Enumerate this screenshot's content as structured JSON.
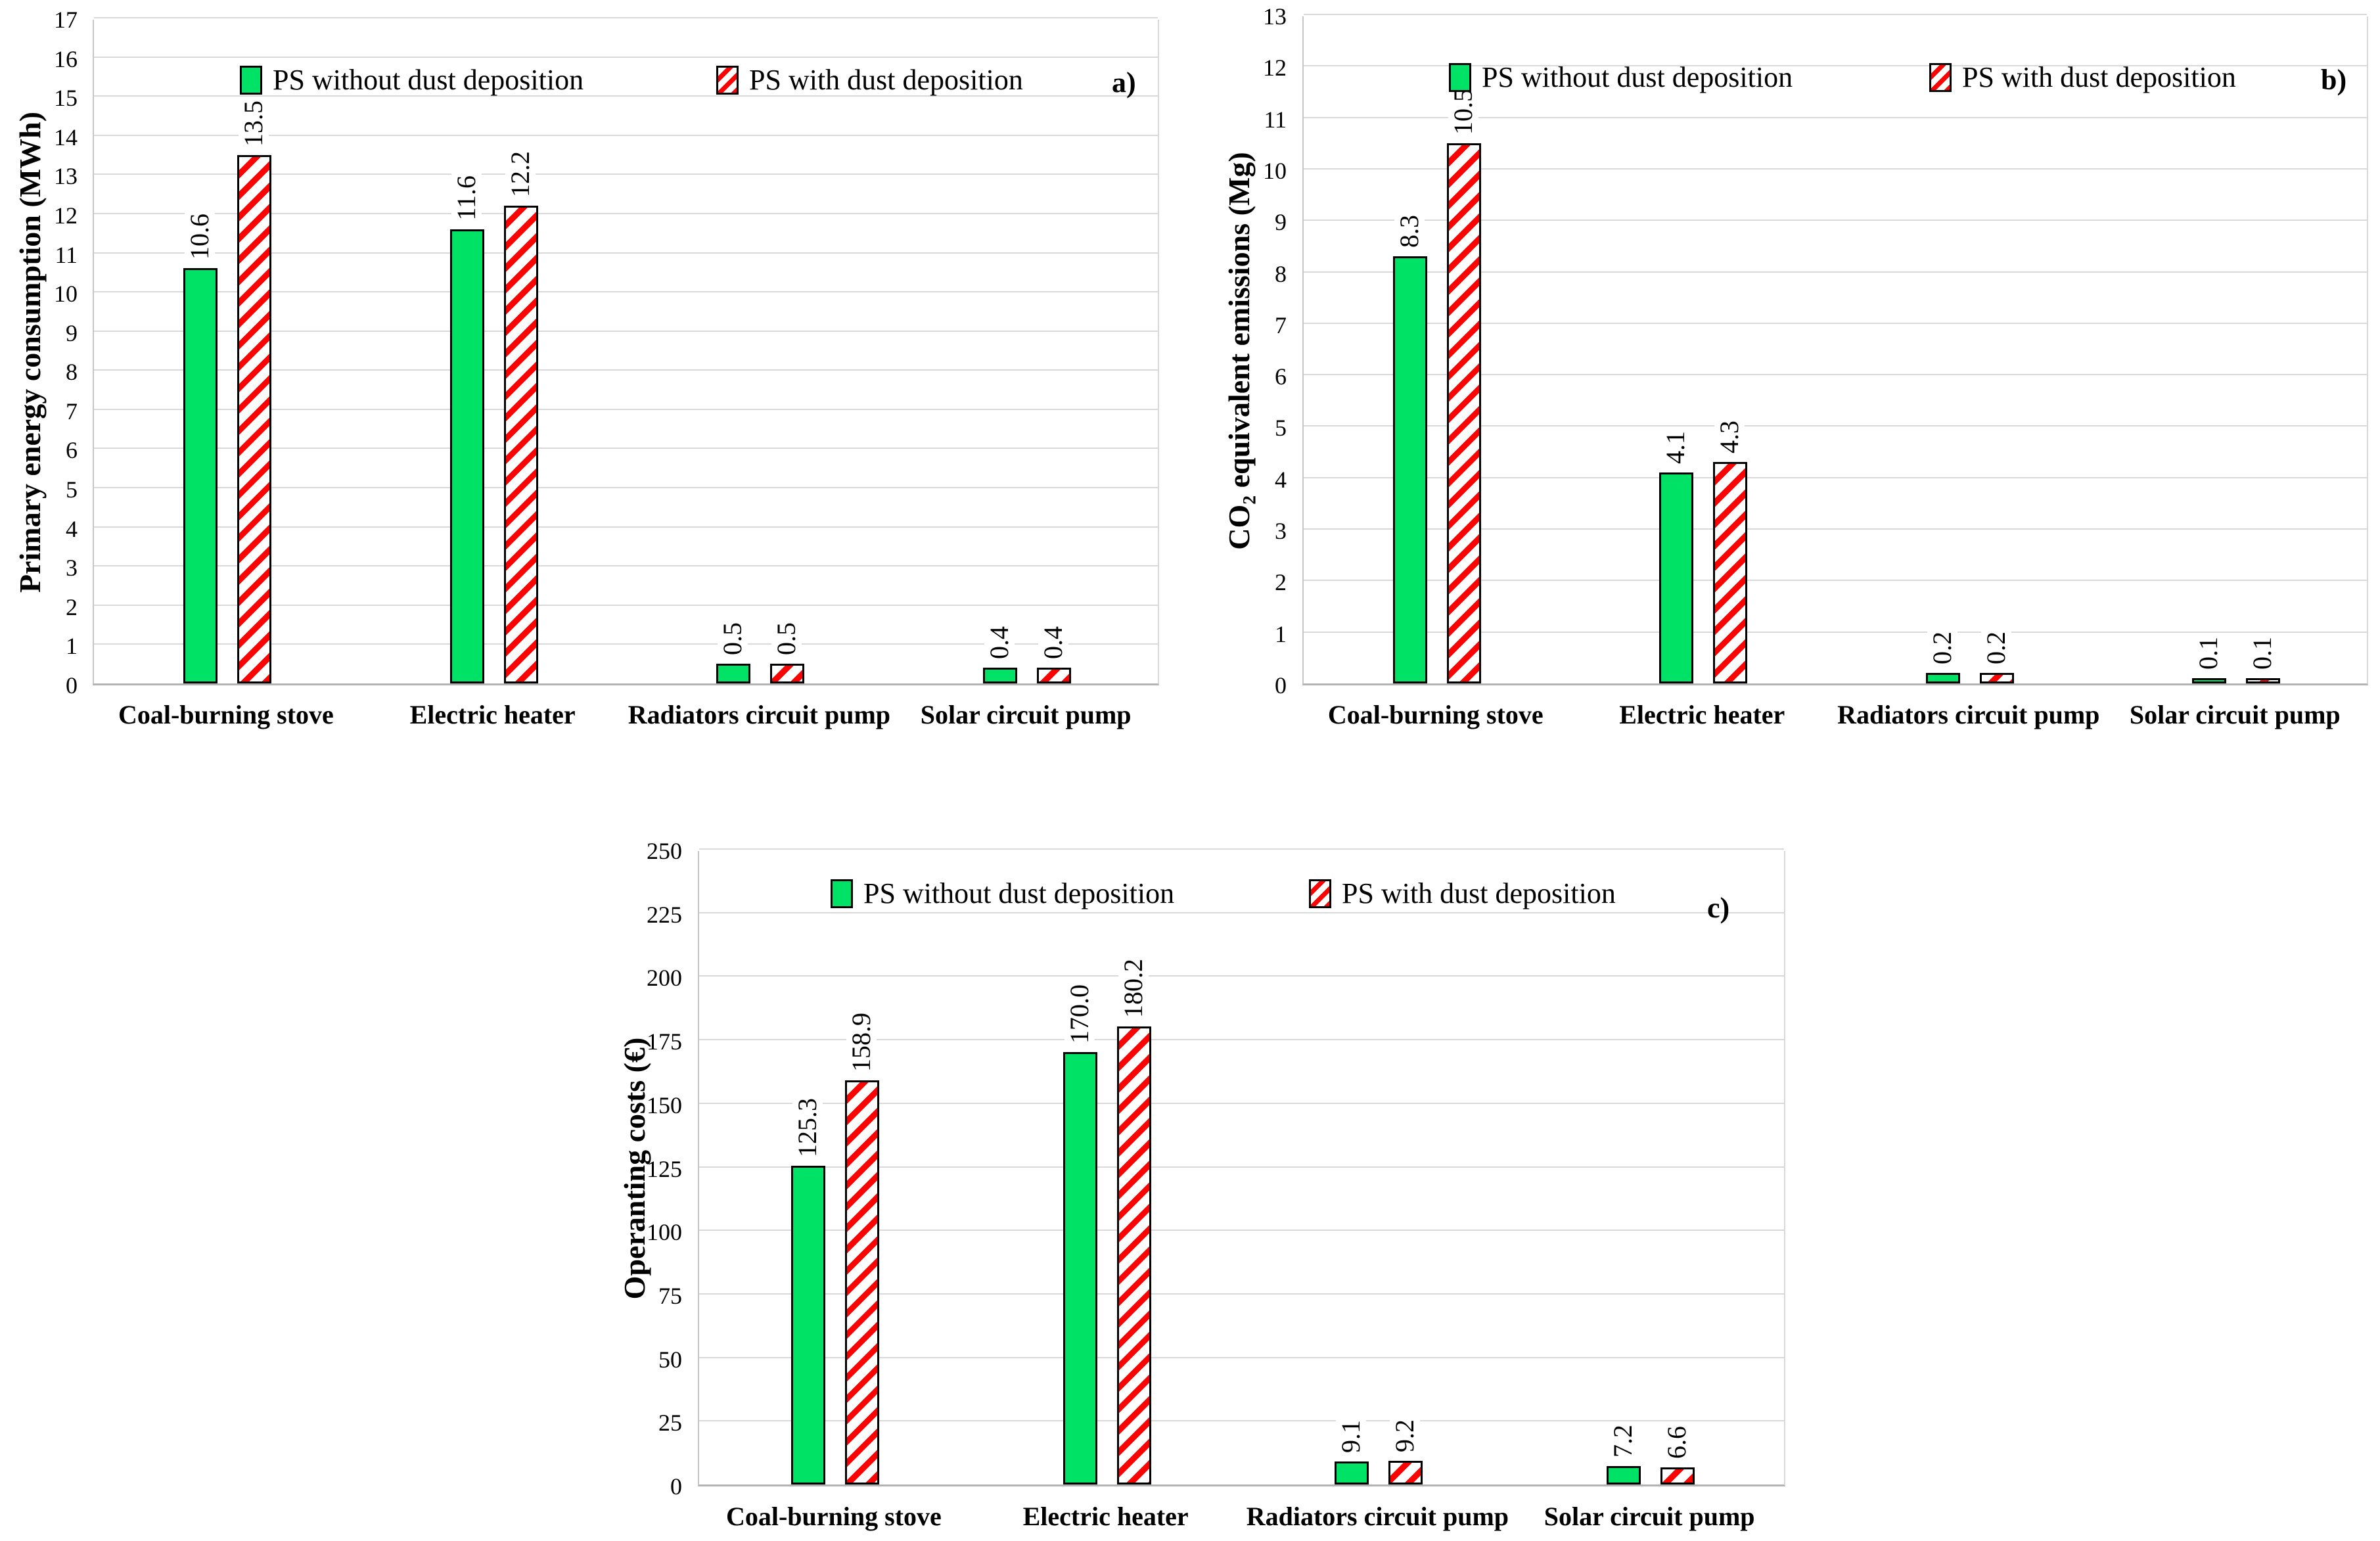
{
  "figure": {
    "background": "#ffffff",
    "colors": {
      "series_without": "#00e266",
      "series_with_stripe": "#ff0000",
      "gridline": "#d9d9d9",
      "axis_line": "#b3b3b3",
      "bar_border": "#000000"
    }
  },
  "chart_data": [
    {
      "id": "a",
      "type": "bar",
      "panel_label": "a)",
      "ylabel": "Primary energy consumption (MWh)",
      "xlabel": "",
      "ylim": [
        0,
        17
      ],
      "ytick_step": 1,
      "grid": true,
      "legend_position": "top-center",
      "categories": [
        "Coal-burning stove",
        "Electric heater",
        "Radiators circuit pump",
        "Solar circuit pump"
      ],
      "series": [
        {
          "name": "PS without dust deposition",
          "style": "solid-green",
          "values": [
            10.6,
            11.6,
            0.5,
            0.4
          ],
          "labels": [
            "10.6",
            "11.6",
            "0.5",
            "0.4"
          ]
        },
        {
          "name": "PS with dust deposition",
          "style": "red-hatch",
          "values": [
            13.5,
            12.2,
            0.5,
            0.4
          ],
          "labels": [
            "13.5",
            "12.2",
            "0.5",
            "0.4"
          ]
        }
      ]
    },
    {
      "id": "b",
      "type": "bar",
      "panel_label": "b)",
      "ylabel": "CO₂ equivalent emissions (Mg)",
      "xlabel": "",
      "ylim": [
        0,
        13
      ],
      "ytick_step": 1,
      "grid": true,
      "legend_position": "top-center",
      "categories": [
        "Coal-burning stove",
        "Electric heater",
        "Radiators circuit pump",
        "Solar circuit pump"
      ],
      "series": [
        {
          "name": "PS without dust deposition",
          "style": "solid-green",
          "values": [
            8.3,
            4.1,
            0.2,
            0.1
          ],
          "labels": [
            "8.3",
            "4.1",
            "0.2",
            "0.1"
          ]
        },
        {
          "name": "PS with dust deposition",
          "style": "red-hatch",
          "values": [
            10.5,
            4.3,
            0.2,
            0.1
          ],
          "labels": [
            "10.5",
            "4.3",
            "0.2",
            "0.1"
          ]
        }
      ]
    },
    {
      "id": "c",
      "type": "bar",
      "panel_label": "c)",
      "ylabel": "Operanting costs (€)",
      "xlabel": "",
      "ylim": [
        0,
        250
      ],
      "ytick_step": 25,
      "grid": true,
      "legend_position": "top-center",
      "categories": [
        "Coal-burning stove",
        "Electric heater",
        "Radiators circuit pump",
        "Solar circuit pump"
      ],
      "series": [
        {
          "name": "PS without dust deposition",
          "style": "solid-green",
          "values": [
            125.3,
            170.0,
            9.1,
            7.2
          ],
          "labels": [
            "125.3",
            "170.0",
            "9.1",
            "7.2"
          ]
        },
        {
          "name": "PS with dust deposition",
          "style": "red-hatch",
          "values": [
            158.9,
            180.2,
            9.2,
            6.6
          ],
          "labels": [
            "158.9",
            "180.2",
            "9.2",
            "6.6"
          ]
        }
      ]
    }
  ]
}
